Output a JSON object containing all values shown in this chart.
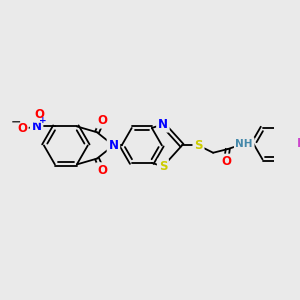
{
  "bg_color": "#eaeaea",
  "bond_color": "#000000",
  "colors": {
    "N": "#0000ff",
    "O": "#ff0000",
    "S": "#cccc00",
    "F": "#cc44cc",
    "NH": "#4488aa",
    "minus": "#333333"
  },
  "figsize": [
    3.0,
    3.0
  ],
  "dpi": 100
}
